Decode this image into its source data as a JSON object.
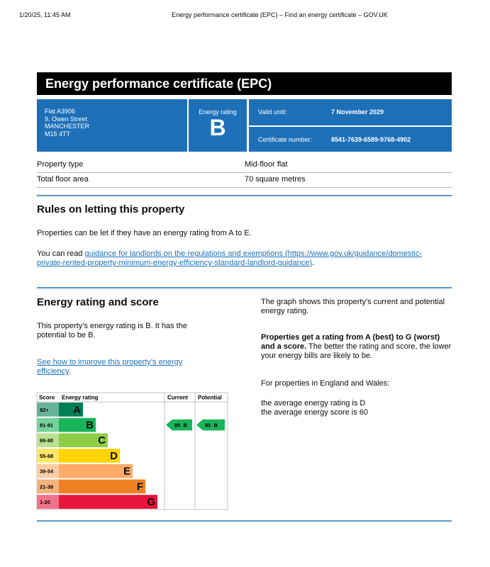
{
  "print_header": {
    "date": "1/20/25, 11:45 AM",
    "title": "Energy performance certificate (EPC) – Find an energy certificate – GOV.UK"
  },
  "header": {
    "title": "Energy performance certificate (EPC)"
  },
  "summary": {
    "address": [
      "Flat A3906",
      "9, Owen Street",
      "MANCHESTER",
      "M15 4TT"
    ],
    "rating_label": "Energy rating",
    "rating": "B",
    "valid_label": "Valid until:",
    "valid_until": "7 November 2029",
    "cert_label": "Certificate number:",
    "cert_number": "8541-7639-6589-9768-4902"
  },
  "property": [
    [
      "Property type",
      "Mid-floor flat"
    ],
    [
      "Total floor area",
      "70 square metres"
    ]
  ],
  "rules": {
    "heading": "Rules on letting this property",
    "p1": "Properties can be let if they have an energy rating from A to E.",
    "p2_prefix": "You can read ",
    "link": "guidance for landlords on the regulations and exemptions (https://www.gov.uk/guidance/domestic-private-rented-property-minimum-energy-efficiency-standard-landlord-guidance)",
    "p2_suffix": "."
  },
  "score": {
    "heading": "Energy rating and score",
    "p1": "This property’s energy rating is B. It has the potential to be B.",
    "link": "See how to improve this property’s energy efficiency",
    "link_suffix": ".",
    "right_p1": "The graph shows this property’s current and potential energy rating.",
    "right_p2_bold": "Properties get a rating from A (best) to G (worst) and a score.",
    "right_p2": " The better the rating and score, the lower your energy bills are likely to be.",
    "right_p3": "For properties in England and Wales:",
    "right_p4": [
      "the average energy rating is D",
      "the average energy score is 60"
    ]
  },
  "chart": {
    "headers": [
      "Score",
      "Energy rating",
      "Current",
      "Potential"
    ],
    "bands": [
      {
        "score": "92+",
        "letter": "A"
      },
      {
        "score": "81-91",
        "letter": "B"
      },
      {
        "score": "69-80",
        "letter": "C"
      },
      {
        "score": "55-68",
        "letter": "D"
      },
      {
        "score": "39-54",
        "letter": "E"
      },
      {
        "score": "21-38",
        "letter": "F"
      },
      {
        "score": "1-20",
        "letter": "G"
      }
    ],
    "current": {
      "score": 85,
      "letter": "B"
    },
    "potential": {
      "score": 85,
      "letter": "B"
    }
  }
}
